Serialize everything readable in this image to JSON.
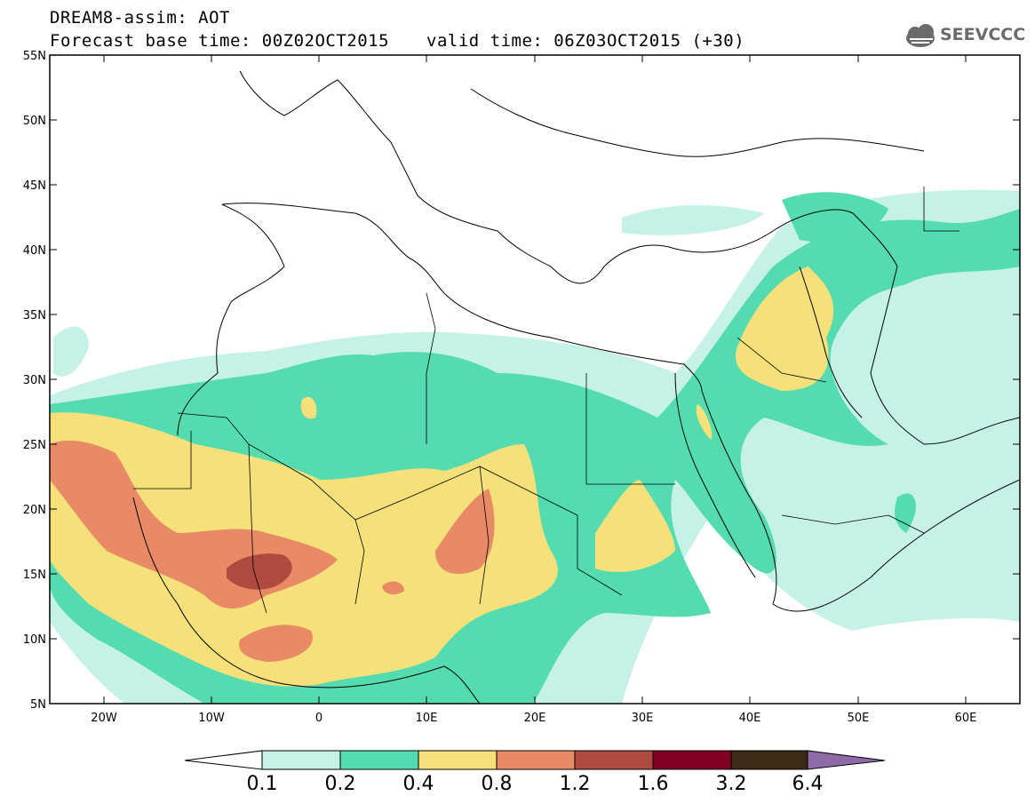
{
  "title": {
    "line1": "DREAM8-assim: AOT",
    "line2": "Forecast base time: 00Z02OCT2015",
    "valid": "valid time: 06Z03OCT2015 (+30)"
  },
  "logo": {
    "text": "SEEVCCC",
    "icon": "cloud-icon"
  },
  "map": {
    "lat_labels": [
      "55N",
      "50N",
      "45N",
      "40N",
      "35N",
      "30N",
      "25N",
      "20N",
      "15N",
      "10N",
      "5N"
    ],
    "lon_labels": [
      "20W",
      "10W",
      "0",
      "10E",
      "20E",
      "30E",
      "40E",
      "50E",
      "60E"
    ],
    "lat_range": [
      5,
      55
    ],
    "lon_range": [
      -25,
      65
    ],
    "variable": "AOT"
  },
  "colorbar": {
    "labels": [
      "0.1",
      "0.2",
      "0.4",
      "0.8",
      "1.2",
      "1.6",
      "3.2",
      "6.4"
    ],
    "colors": [
      "#ffffff",
      "#c6f1e6",
      "#54dcb0",
      "#f5e07a",
      "#e88a66",
      "#ad4b3e",
      "#800024",
      "#3d2a14",
      "#8e6aa8"
    ]
  }
}
